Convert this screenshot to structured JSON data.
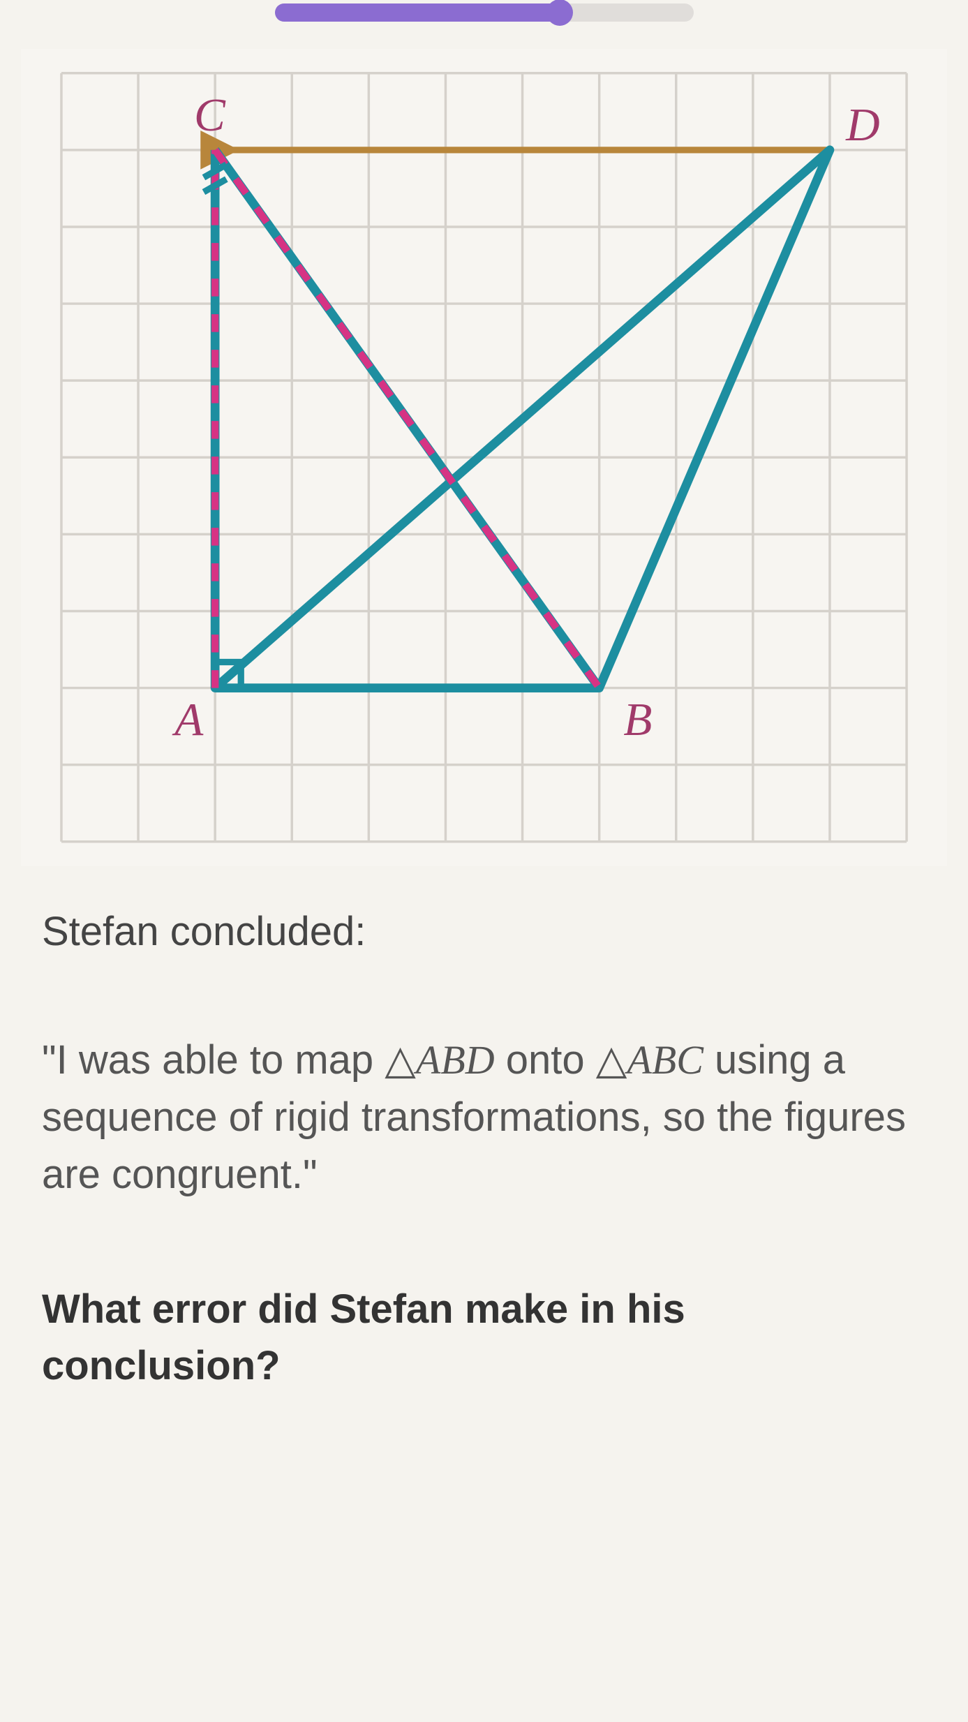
{
  "progress": {
    "percent": 68
  },
  "diagram": {
    "type": "geometry-grid",
    "background_color": "#f7f5f1",
    "grid_color": "#d5d1cb",
    "grid_cell_size": 95,
    "grid_cols": 11,
    "grid_rows": 10,
    "points": {
      "A": {
        "x": 2,
        "y": 8,
        "label": "A",
        "label_dx": -50,
        "label_dy": 58
      },
      "B": {
        "x": 7,
        "y": 8,
        "label": "B",
        "label_dx": 30,
        "label_dy": 58
      },
      "C": {
        "x": 2,
        "y": 1,
        "label": "C",
        "label_dx": -26,
        "label_dy": -24
      },
      "D": {
        "x": 10,
        "y": 1,
        "label": "D",
        "label_dx": 20,
        "label_dy": -12
      }
    },
    "label_color": "#a03a6a",
    "label_fontsize": 58,
    "triangle1": {
      "vertices": [
        "A",
        "B",
        "D"
      ],
      "stroke": "#1d8ea0",
      "stroke_width": 11
    },
    "triangle2_dashed": {
      "vertices": [
        "A",
        "B",
        "C"
      ],
      "stroke": "#d63384",
      "stroke_width": 9,
      "dash": "22 22"
    },
    "extra_segment": {
      "from": "D",
      "to": "C",
      "stroke": "#b8863b",
      "stroke_width": 8,
      "arrow": true
    },
    "right_angle_marker": {
      "at": "A",
      "size": 32,
      "stroke": "#1d8ea0",
      "stroke_width": 8
    }
  },
  "text": {
    "concluded_label": "Stefan concluded:",
    "quote_pre": "\"I was able to map ",
    "triangle1_label": "ABD",
    "quote_mid1": " onto ",
    "triangle2_label": "ABC",
    "quote_post": " using a sequence of rigid transformations, so the figures are congruent.\"",
    "question": "What error did Stefan make in his conclusion?"
  }
}
